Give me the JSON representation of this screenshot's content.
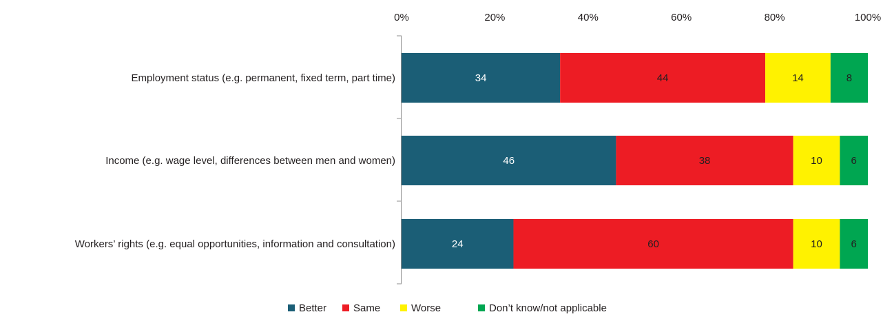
{
  "chart_data": {
    "type": "bar",
    "orientation": "horizontal",
    "stacked": true,
    "categories": [
      "Employment status (e.g. permanent, fixed term, part time)",
      "Income (e.g. wage level, differences between men and women)",
      "Workers’ rights (e.g. equal opportunities, information and consultation)"
    ],
    "series": [
      {
        "name": "Better",
        "values": [
          34,
          46,
          24
        ],
        "color": "#1b5e76",
        "label_color": "#ffffff"
      },
      {
        "name": "Same",
        "values": [
          44,
          38,
          60
        ],
        "color": "#ed1c24",
        "label_color": "#231f20"
      },
      {
        "name": "Worse",
        "values": [
          14,
          10,
          10
        ],
        "color": "#fff200",
        "label_color": "#231f20"
      },
      {
        "name": "Don’t know/not applicable",
        "values": [
          8,
          6,
          6
        ],
        "color": "#00a651",
        "label_color": "#231f20"
      }
    ],
    "x_ticks": [
      "0%",
      "20%",
      "40%",
      "60%",
      "80%",
      "100%"
    ],
    "xlim": [
      0,
      100
    ],
    "x_axis_position": "top",
    "grid": false,
    "legend_position": "bottom-center",
    "title": "",
    "xlabel": "",
    "ylabel": ""
  }
}
